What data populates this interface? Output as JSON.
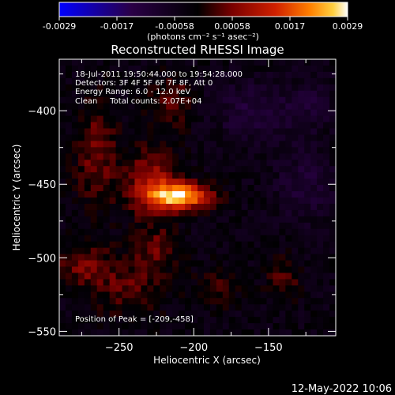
{
  "chart_data": {
    "type": "heatmap",
    "title": "Reconstructed RHESSI Image",
    "xlabel": "Heliocentric X (arcsec)",
    "ylabel": "Heliocentric Y (arcsec)",
    "x_ticks": [
      -250,
      -200,
      -150
    ],
    "y_ticks": [
      -400,
      -450,
      -500,
      -550
    ],
    "xlim": [
      -290,
      -105
    ],
    "ylim": [
      -553,
      -365
    ],
    "colorbar": {
      "ticks": [
        "-0.0029",
        "-0.0017",
        "-0.00058",
        "0.00058",
        "0.0017",
        "0.0029"
      ],
      "min": -0.0029,
      "max": 0.0029,
      "unit_label": "(photons cm⁻² s⁻¹ asec⁻²)",
      "colors": [
        "#0000ff",
        "#2a0046",
        "#000000",
        "#7a0000",
        "#d02000",
        "#ff8000",
        "#ffd040",
        "#ffffff"
      ]
    },
    "annotations": [
      "18-Jul-2011 19:50:44.000 to 19:54:28.000",
      "Detectors: 3F 4F 5F 6F 7F 8F, Att 0",
      "Energy Range: 6.0 - 12.0 keV",
      "Clean     Total counts: 2.07E+04"
    ],
    "peak_label": "Position of Peak = [-209,-458]",
    "peak": {
      "x": -209,
      "y": -458
    },
    "sources": [
      {
        "x": -209,
        "y": -458,
        "sx": 14,
        "sy": 6,
        "amp": 0.0029
      },
      {
        "x": -228,
        "y": -450,
        "sx": 12,
        "sy": 16,
        "amp": 0.0014
      },
      {
        "x": -265,
        "y": -430,
        "sx": 10,
        "sy": 26,
        "amp": 0.0009
      },
      {
        "x": -215,
        "y": -395,
        "sx": 10,
        "sy": 12,
        "amp": 0.0009
      },
      {
        "x": -275,
        "y": -505,
        "sx": 14,
        "sy": 10,
        "amp": 0.0008
      },
      {
        "x": -245,
        "y": -520,
        "sx": 18,
        "sy": 14,
        "amp": 0.0007
      },
      {
        "x": -225,
        "y": -495,
        "sx": 10,
        "sy": 10,
        "amp": 0.0008
      },
      {
        "x": -140,
        "y": -515,
        "sx": 8,
        "sy": 10,
        "amp": 0.0007
      },
      {
        "x": -185,
        "y": -520,
        "sx": 10,
        "sy": 10,
        "amp": 0.0005
      },
      {
        "x": -160,
        "y": -400,
        "sx": 18,
        "sy": 14,
        "amp": -0.0007
      },
      {
        "x": -125,
        "y": -450,
        "sx": 14,
        "sy": 18,
        "amp": -0.0006
      },
      {
        "x": -120,
        "y": -395,
        "sx": 12,
        "sy": 12,
        "amp": -0.0005
      }
    ]
  },
  "footer": {
    "date": "12-May-2022 10:06"
  }
}
